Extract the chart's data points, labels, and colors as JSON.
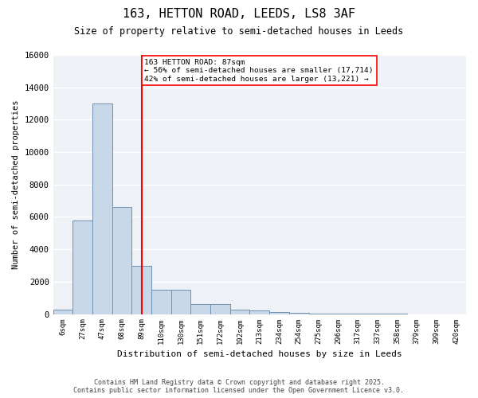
{
  "title": "163, HETTON ROAD, LEEDS, LS8 3AF",
  "subtitle": "Size of property relative to semi-detached houses in Leeds",
  "xlabel": "Distribution of semi-detached houses by size in Leeds",
  "ylabel": "Number of semi-detached properties",
  "bin_labels": [
    "6sqm",
    "27sqm",
    "47sqm",
    "68sqm",
    "89sqm",
    "110sqm",
    "130sqm",
    "151sqm",
    "172sqm",
    "192sqm",
    "213sqm",
    "234sqm",
    "254sqm",
    "275sqm",
    "296sqm",
    "317sqm",
    "337sqm",
    "358sqm",
    "379sqm",
    "399sqm",
    "420sqm"
  ],
  "bar_values": [
    250,
    5800,
    13000,
    6600,
    3000,
    1500,
    1500,
    600,
    600,
    250,
    200,
    150,
    100,
    50,
    50,
    20,
    10,
    5,
    2,
    1,
    0
  ],
  "bar_color": "#c8d8e8",
  "bar_edge_color": "#7090b0",
  "red_line_index": 4,
  "property_sqm": 87,
  "pct_smaller": 56,
  "pct_larger": 42,
  "num_smaller": 17714,
  "num_larger": 13221,
  "annotation_line1": "163 HETTON ROAD: 87sqm",
  "annotation_line2": "← 56% of semi-detached houses are smaller (17,714)",
  "annotation_line3": "42% of semi-detached houses are larger (13,221) →",
  "ylim": [
    0,
    16000
  ],
  "yticks": [
    0,
    2000,
    4000,
    6000,
    8000,
    10000,
    12000,
    14000,
    16000
  ],
  "background_color": "#eef2f7",
  "grid_color": "#ffffff",
  "footer_line1": "Contains HM Land Registry data © Crown copyright and database right 2025.",
  "footer_line2": "Contains public sector information licensed under the Open Government Licence v3.0."
}
